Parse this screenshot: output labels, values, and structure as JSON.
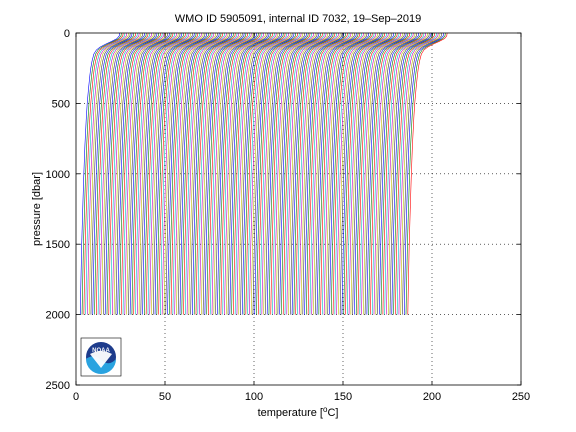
{
  "chart_data": {
    "type": "line",
    "title": "WMO ID 5905091, internal ID 7032, 19–Sep–2019",
    "xlabel_main": "temperature [",
    "xlabel_sup": "o",
    "xlabel_tail": "C]",
    "ylabel": "pressure [dbar]",
    "xlim": [
      0,
      250
    ],
    "ylim": [
      0,
      2500
    ],
    "y_reversed": true,
    "grid": "dotted",
    "x_ticks": [
      0,
      50,
      100,
      150,
      200,
      250
    ],
    "y_ticks": [
      0,
      500,
      1000,
      1500,
      2000,
      2500
    ],
    "series_rendering": "waterfall: each successive profile is offset along the temperature axis",
    "profile_count": 185,
    "profile_offset_step": 1,
    "base_profile": {
      "pressure": [
        0,
        20,
        40,
        60,
        80,
        100,
        120,
        150,
        200,
        250,
        300,
        400,
        500,
        600,
        800,
        1000,
        1200,
        1500,
        1800,
        2000
      ],
      "temperature": [
        24.5,
        24.3,
        23.0,
        20.0,
        16.5,
        13.5,
        11.5,
        10.0,
        9.0,
        8.3,
        7.8,
        7.0,
        6.3,
        5.8,
        5.0,
        4.4,
        3.9,
        3.2,
        2.7,
        2.4
      ]
    },
    "colors": [
      "#0000ff",
      "#008000",
      "#ff0000",
      "#00bfbf",
      "#bf00bf",
      "#bfbf00",
      "#404040"
    ],
    "logo": {
      "name": "noaa-logo",
      "text": "NOAA",
      "colors": [
        "#1e3c8c",
        "#29a3e0",
        "#ffffff"
      ]
    }
  }
}
